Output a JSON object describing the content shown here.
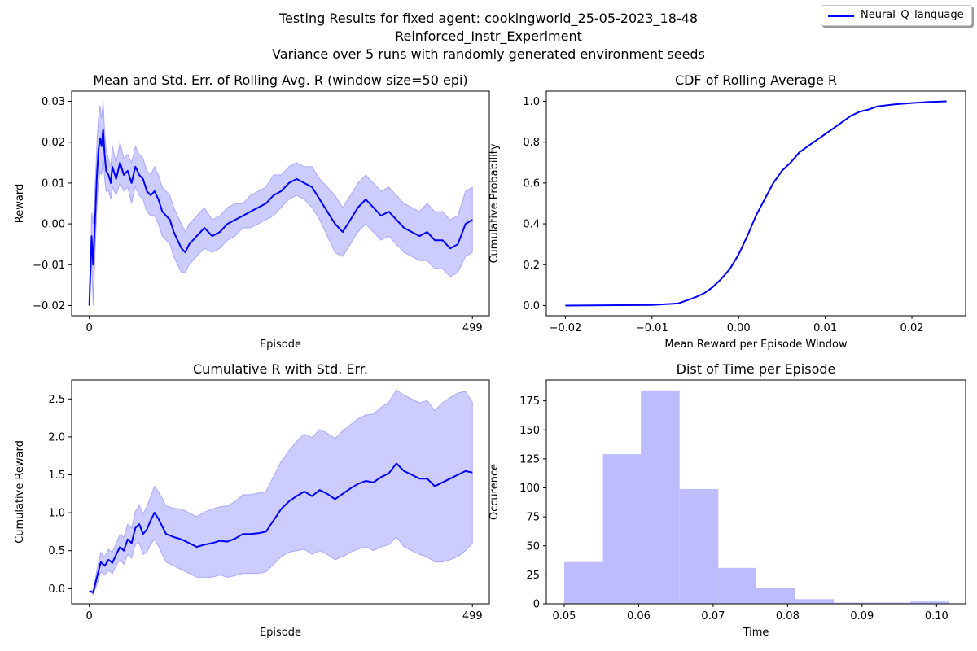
{
  "figure": {
    "suptitle": [
      "Testing Results for fixed agent: cookingworld_25-05-2023_18-48",
      "Reinforced_Instr_Experiment",
      "Variance over 5 runs with randomly generated environment seeds"
    ],
    "legend": {
      "label": "Neural_Q_language",
      "color": "#0000ff"
    }
  },
  "chart_data": [
    {
      "type": "line",
      "title": "Mean and Std. Err. of Rolling Avg. R (window size=50 epi)",
      "xlabel": "Episode",
      "ylabel": "Reward",
      "xlim": [
        -23,
        521
      ],
      "ylim": [
        -0.0225,
        0.0325
      ],
      "xticks": [
        0,
        499
      ],
      "yticks": [
        -0.02,
        -0.01,
        0.0,
        0.01,
        0.02,
        0.03
      ],
      "ytick_labels": [
        "−0.02",
        "−0.01",
        "0.00",
        "0.01",
        "0.02",
        "0.03"
      ],
      "series": [
        {
          "name": "Neural_Q_language",
          "color": "#0000ff",
          "x": [
            0,
            3,
            5,
            8,
            10,
            12,
            14,
            16,
            18,
            20,
            22,
            25,
            28,
            30,
            35,
            40,
            45,
            50,
            55,
            60,
            65,
            70,
            75,
            80,
            85,
            90,
            95,
            100,
            105,
            110,
            115,
            120,
            125,
            130,
            135,
            140,
            145,
            150,
            160,
            170,
            180,
            190,
            200,
            210,
            220,
            230,
            240,
            250,
            260,
            270,
            280,
            290,
            300,
            310,
            320,
            330,
            340,
            350,
            360,
            370,
            380,
            390,
            400,
            410,
            420,
            430,
            440,
            450,
            460,
            470,
            480,
            490,
            499
          ],
          "y": [
            -0.02,
            -0.003,
            -0.01,
            0.003,
            0.012,
            0.018,
            0.021,
            0.019,
            0.023,
            0.017,
            0.013,
            0.012,
            0.01,
            0.014,
            0.011,
            0.015,
            0.012,
            0.013,
            0.01,
            0.014,
            0.012,
            0.011,
            0.008,
            0.007,
            0.008,
            0.006,
            0.003,
            0.002,
            0.001,
            -0.002,
            -0.004,
            -0.006,
            -0.007,
            -0.005,
            -0.004,
            -0.003,
            -0.002,
            -0.001,
            -0.003,
            -0.002,
            0.0,
            0.001,
            0.002,
            0.003,
            0.004,
            0.005,
            0.007,
            0.008,
            0.01,
            0.011,
            0.01,
            0.009,
            0.006,
            0.003,
            0.0,
            -0.002,
            0.001,
            0.004,
            0.006,
            0.004,
            0.002,
            0.003,
            0.001,
            -0.001,
            -0.002,
            -0.003,
            -0.002,
            -0.004,
            -0.004,
            -0.006,
            -0.005,
            0.0,
            0.001
          ]
        }
      ],
      "band": {
        "lower": [
          -0.02,
          -0.009,
          -0.02,
          -0.005,
          0.004,
          0.01,
          0.013,
          0.012,
          0.016,
          0.011,
          0.008,
          0.008,
          0.006,
          0.009,
          0.007,
          0.01,
          0.008,
          0.009,
          0.005,
          0.009,
          0.007,
          0.006,
          0.003,
          0.002,
          0.002,
          0.0,
          -0.003,
          -0.004,
          -0.005,
          -0.008,
          -0.01,
          -0.012,
          -0.012,
          -0.01,
          -0.009,
          -0.008,
          -0.007,
          -0.006,
          -0.007,
          -0.006,
          -0.004,
          -0.003,
          -0.001,
          -0.001,
          0.0,
          0.001,
          0.002,
          0.004,
          0.006,
          0.007,
          0.006,
          0.004,
          0.001,
          -0.003,
          -0.007,
          -0.008,
          -0.005,
          -0.002,
          0.0,
          -0.002,
          -0.004,
          -0.003,
          -0.005,
          -0.007,
          -0.008,
          -0.009,
          -0.009,
          -0.011,
          -0.011,
          -0.013,
          -0.012,
          -0.008,
          -0.007
        ],
        "upper": [
          -0.02,
          0.003,
          0.0,
          0.011,
          0.02,
          0.026,
          0.029,
          0.026,
          0.03,
          0.023,
          0.018,
          0.016,
          0.014,
          0.019,
          0.015,
          0.02,
          0.016,
          0.017,
          0.015,
          0.019,
          0.017,
          0.016,
          0.013,
          0.012,
          0.014,
          0.012,
          0.009,
          0.008,
          0.007,
          0.004,
          0.002,
          0.0,
          -0.002,
          0.0,
          0.001,
          0.002,
          0.003,
          0.004,
          0.001,
          0.002,
          0.004,
          0.005,
          0.005,
          0.007,
          0.008,
          0.009,
          0.012,
          0.012,
          0.014,
          0.015,
          0.014,
          0.014,
          0.011,
          0.009,
          0.007,
          0.004,
          0.007,
          0.01,
          0.012,
          0.01,
          0.008,
          0.009,
          0.007,
          0.005,
          0.004,
          0.003,
          0.005,
          0.003,
          0.003,
          0.001,
          0.002,
          0.008,
          0.009
        ]
      },
      "band_color": "#0000ff"
    },
    {
      "type": "line",
      "title": "CDF of Rolling Average R",
      "xlabel": "Mean Reward per Episode Window",
      "ylabel": "Cumulative Probability",
      "xlim": [
        -0.0222,
        0.0262
      ],
      "ylim": [
        -0.05,
        1.05
      ],
      "xticks": [
        -0.02,
        -0.01,
        0.0,
        0.01,
        0.02
      ],
      "xtick_labels": [
        "−0.02",
        "−0.01",
        "0.00",
        "0.01",
        "0.02"
      ],
      "yticks": [
        0.0,
        0.2,
        0.4,
        0.6,
        0.8,
        1.0
      ],
      "ytick_labels": [
        "0.0",
        "0.2",
        "0.4",
        "0.6",
        "0.8",
        "1.0"
      ],
      "series": [
        {
          "name": "Neural_Q_language",
          "color": "#0000ff",
          "x": [
            -0.02,
            -0.01,
            -0.007,
            -0.006,
            -0.005,
            -0.004,
            -0.003,
            -0.002,
            -0.001,
            0.0,
            0.001,
            0.002,
            0.003,
            0.004,
            0.005,
            0.006,
            0.007,
            0.008,
            0.009,
            0.01,
            0.011,
            0.012,
            0.013,
            0.014,
            0.015,
            0.016,
            0.018,
            0.02,
            0.022,
            0.024
          ],
          "y": [
            0.0,
            0.003,
            0.01,
            0.025,
            0.04,
            0.06,
            0.09,
            0.13,
            0.18,
            0.25,
            0.34,
            0.44,
            0.52,
            0.6,
            0.66,
            0.7,
            0.75,
            0.78,
            0.81,
            0.84,
            0.87,
            0.9,
            0.93,
            0.95,
            0.96,
            0.975,
            0.985,
            0.992,
            0.997,
            1.0
          ]
        }
      ]
    },
    {
      "type": "line",
      "title": "Cumulative R with Std. Err.",
      "xlabel": "Episode",
      "ylabel": "Cumulative Reward",
      "xlim": [
        -23,
        521
      ],
      "ylim": [
        -0.2,
        2.75
      ],
      "xticks": [
        0,
        499
      ],
      "yticks": [
        0.0,
        0.5,
        1.0,
        1.5,
        2.0,
        2.5
      ],
      "ytick_labels": [
        "0.0",
        "0.5",
        "1.0",
        "1.5",
        "2.0",
        "2.5"
      ],
      "series": [
        {
          "name": "Neural_Q_language",
          "color": "#0000ff",
          "x": [
            0,
            5,
            10,
            15,
            20,
            25,
            30,
            35,
            40,
            45,
            50,
            55,
            60,
            65,
            70,
            75,
            80,
            85,
            90,
            95,
            100,
            110,
            120,
            130,
            140,
            150,
            160,
            170,
            180,
            190,
            200,
            210,
            220,
            230,
            240,
            250,
            260,
            270,
            280,
            290,
            300,
            310,
            320,
            330,
            340,
            350,
            360,
            370,
            380,
            390,
            400,
            410,
            420,
            430,
            440,
            450,
            460,
            470,
            480,
            490,
            499
          ],
          "y": [
            -0.03,
            -0.05,
            0.15,
            0.35,
            0.3,
            0.38,
            0.34,
            0.45,
            0.55,
            0.5,
            0.65,
            0.6,
            0.8,
            0.85,
            0.72,
            0.78,
            0.9,
            1.0,
            0.92,
            0.82,
            0.72,
            0.68,
            0.65,
            0.6,
            0.55,
            0.58,
            0.6,
            0.63,
            0.62,
            0.66,
            0.72,
            0.72,
            0.73,
            0.75,
            0.9,
            1.05,
            1.15,
            1.22,
            1.28,
            1.22,
            1.3,
            1.25,
            1.18,
            1.25,
            1.32,
            1.38,
            1.42,
            1.4,
            1.47,
            1.52,
            1.65,
            1.55,
            1.5,
            1.45,
            1.45,
            1.35,
            1.4,
            1.45,
            1.5,
            1.55,
            1.53
          ]
        }
      ],
      "band": {
        "lower": [
          -0.03,
          -0.08,
          0.05,
          0.22,
          0.18,
          0.24,
          0.2,
          0.3,
          0.38,
          0.32,
          0.45,
          0.4,
          0.58,
          0.6,
          0.45,
          0.48,
          0.58,
          0.65,
          0.56,
          0.45,
          0.35,
          0.3,
          0.25,
          0.2,
          0.15,
          0.15,
          0.15,
          0.18,
          0.15,
          0.17,
          0.2,
          0.2,
          0.2,
          0.22,
          0.32,
          0.42,
          0.48,
          0.5,
          0.52,
          0.45,
          0.5,
          0.45,
          0.38,
          0.42,
          0.48,
          0.52,
          0.55,
          0.5,
          0.55,
          0.58,
          0.68,
          0.55,
          0.5,
          0.45,
          0.42,
          0.35,
          0.35,
          0.38,
          0.42,
          0.5,
          0.6
        ],
        "upper": [
          -0.03,
          -0.02,
          0.25,
          0.48,
          0.42,
          0.52,
          0.48,
          0.6,
          0.72,
          0.68,
          0.85,
          0.8,
          1.02,
          1.1,
          0.99,
          1.08,
          1.22,
          1.35,
          1.28,
          1.19,
          1.09,
          1.06,
          1.05,
          1.0,
          0.95,
          1.01,
          1.05,
          1.08,
          1.09,
          1.15,
          1.24,
          1.24,
          1.26,
          1.28,
          1.48,
          1.68,
          1.82,
          1.94,
          2.04,
          1.99,
          2.1,
          2.05,
          1.98,
          2.08,
          2.16,
          2.24,
          2.29,
          2.3,
          2.39,
          2.46,
          2.62,
          2.55,
          2.5,
          2.45,
          2.48,
          2.35,
          2.45,
          2.52,
          2.58,
          2.6,
          2.46
        ]
      },
      "band_color": "#0000ff"
    },
    {
      "type": "bar",
      "title": "Dist of Time per Episode",
      "xlabel": "Time",
      "ylabel": "Occurence",
      "xlim": [
        0.0476,
        0.1039
      ],
      "ylim": [
        0,
        193
      ],
      "xticks": [
        0.05,
        0.06,
        0.07,
        0.08,
        0.09,
        0.1
      ],
      "xtick_labels": [
        "0.05",
        "0.06",
        "0.07",
        "0.08",
        "0.09",
        "0.10"
      ],
      "yticks": [
        0,
        25,
        50,
        75,
        100,
        125,
        150,
        175
      ],
      "ytick_labels": [
        "0",
        "25",
        "50",
        "75",
        "100",
        "125",
        "150",
        "175"
      ],
      "bin_edges": [
        0.05,
        0.0552,
        0.0603,
        0.0655,
        0.0707,
        0.0758,
        0.081,
        0.0862,
        0.0913,
        0.0965,
        0.1017
      ],
      "values": [
        36,
        129,
        184,
        99,
        31,
        14,
        4,
        1,
        1,
        2
      ],
      "color": "#bcbcff"
    }
  ]
}
